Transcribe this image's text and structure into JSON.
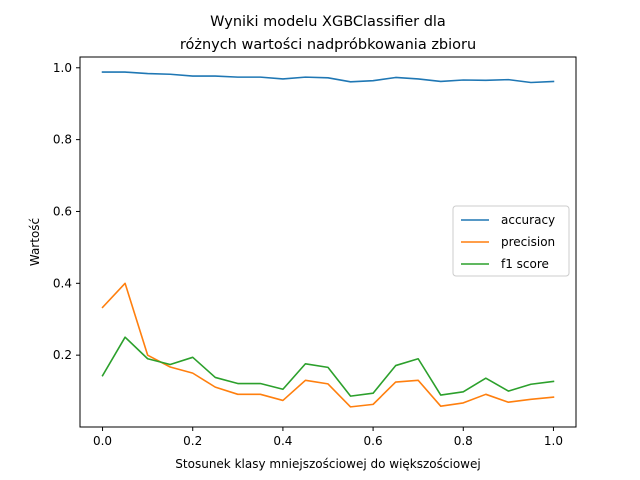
{
  "chart_data": {
    "type": "line",
    "title_lines": [
      "Wyniki modelu XGBClassifier dla",
      "różnych wartości nadpróbkowania zbioru"
    ],
    "xlabel": "Stosunek klasy mniejszościowej do większościowej",
    "ylabel": "Wartość",
    "xlim": [
      -0.05,
      1.05
    ],
    "ylim": [
      0.0,
      1.03
    ],
    "x_ticks": [
      "0.0",
      "0.2",
      "0.4",
      "0.6",
      "0.8",
      "1.0"
    ],
    "y_ticks": [
      "0.2",
      "0.4",
      "0.6",
      "0.8",
      "1.0"
    ],
    "grid": false,
    "legend_position": "center-right",
    "x": [
      0.0,
      0.05,
      0.1,
      0.15,
      0.2,
      0.25,
      0.3,
      0.35,
      0.4,
      0.45,
      0.5,
      0.55,
      0.6,
      0.65,
      0.7,
      0.75,
      0.8,
      0.85,
      0.9,
      0.95,
      1.0
    ],
    "series": [
      {
        "name": "accuracy",
        "color": "#1f77b4",
        "values": [
          0.988,
          0.988,
          0.984,
          0.982,
          0.977,
          0.977,
          0.974,
          0.974,
          0.969,
          0.974,
          0.972,
          0.961,
          0.964,
          0.973,
          0.969,
          0.962,
          0.966,
          0.965,
          0.967,
          0.959,
          0.962
        ]
      },
      {
        "name": "precision",
        "color": "#ff7f0e",
        "values": [
          0.333,
          0.4,
          0.2,
          0.167,
          0.15,
          0.111,
          0.091,
          0.091,
          0.074,
          0.13,
          0.12,
          0.056,
          0.063,
          0.125,
          0.13,
          0.058,
          0.067,
          0.091,
          0.069,
          0.077,
          0.083
        ]
      },
      {
        "name": "f1 score",
        "color": "#2ca02c",
        "values": [
          0.143,
          0.25,
          0.19,
          0.174,
          0.194,
          0.138,
          0.121,
          0.121,
          0.105,
          0.176,
          0.166,
          0.086,
          0.094,
          0.171,
          0.19,
          0.089,
          0.098,
          0.136,
          0.1,
          0.119,
          0.127
        ]
      }
    ]
  }
}
